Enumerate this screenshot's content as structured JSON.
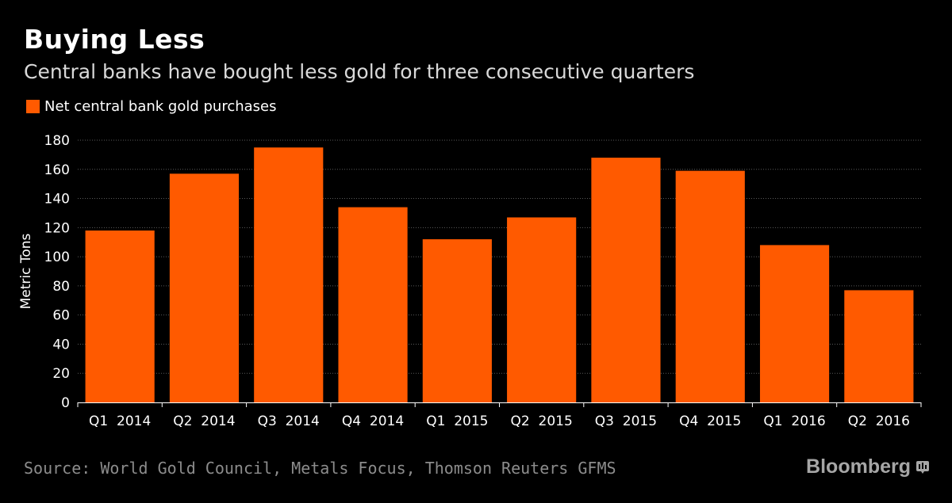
{
  "header": {
    "title": "Buying Less",
    "subtitle": "Central banks have bought less gold for three consecutive quarters"
  },
  "legend": {
    "label": "Net central bank gold purchases"
  },
  "footer": {
    "source": "Source: World Gold Council, Metals Focus, Thomson Reuters GFMS",
    "brand": "Bloomberg",
    "brand_icon": "bloomberg-terminal-icon"
  },
  "colors": {
    "bar": "#ff5a00",
    "background": "#000000",
    "grid": "#5a5a5a"
  },
  "chart_data": {
    "type": "bar",
    "title": "Buying Less",
    "subtitle": "Central banks have bought less gold for three consecutive quarters",
    "xlabel": "",
    "ylabel": "Metric Tons",
    "ylim": [
      0,
      180
    ],
    "yticks": [
      0,
      20,
      40,
      60,
      80,
      100,
      120,
      140,
      160,
      180
    ],
    "grid": true,
    "legend_position": "top-left",
    "categories": [
      "Q1  2014",
      "Q2  2014",
      "Q3  2014",
      "Q4  2014",
      "Q1  2015",
      "Q2  2015",
      "Q3  2015",
      "Q4  2015",
      "Q1  2016",
      "Q2  2016"
    ],
    "series": [
      {
        "name": "Net central bank gold purchases",
        "values": [
          118,
          157,
          175,
          134,
          112,
          127,
          168,
          159,
          108,
          77
        ]
      }
    ]
  }
}
